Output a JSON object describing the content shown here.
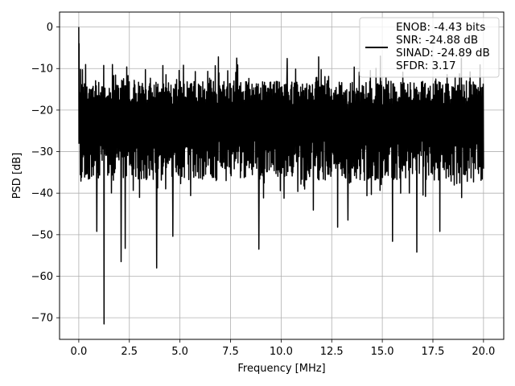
{
  "chart_data": {
    "type": "line",
    "xlabel": "Frequency [MHz]",
    "ylabel": "PSD [dB]",
    "xlim": [
      -0.95,
      21.0
    ],
    "ylim": [
      -75.2,
      3.6
    ],
    "xticks": [
      0.0,
      2.5,
      5.0,
      7.5,
      10.0,
      12.5,
      15.0,
      17.5,
      20.0
    ],
    "xtick_labels": [
      "0.0",
      "2.5",
      "5.0",
      "7.5",
      "10.0",
      "12.5",
      "15.0",
      "17.5",
      "20.0"
    ],
    "yticks": [
      0,
      -10,
      -20,
      -30,
      -40,
      -50,
      -60,
      -70
    ],
    "ytick_labels": [
      "0",
      "−10",
      "−20",
      "−30",
      "−40",
      "−50",
      "−60",
      "−70"
    ],
    "grid": true,
    "legend_position": "top-right",
    "series": [
      {
        "name": "ENOB: -4.43 bits",
        "name_lines": [
          "ENOB: -4.43 bits",
          "SNR: -24.88 dB",
          "SINAD: -24.89 dB",
          "SFDR: 3.17"
        ],
        "color": "#000000",
        "description": "noise-like power spectral density, mostly between -40 and -10 dB across 0-20 MHz",
        "x_range": [
          0.0,
          20.0
        ],
        "peak": {
          "x": 0.0,
          "y": 0.0
        },
        "typical_upper": -12,
        "typical_lower": -35,
        "notable_minima": [
          {
            "x": 1.25,
            "y": -71.5
          },
          {
            "x": 3.85,
            "y": -58.0
          },
          {
            "x": 2.1,
            "y": -56.5
          },
          {
            "x": 8.9,
            "y": -53.5
          },
          {
            "x": 2.3,
            "y": -53.3
          },
          {
            "x": 16.7,
            "y": -54.2
          },
          {
            "x": 15.5,
            "y": -51.6
          },
          {
            "x": 4.65,
            "y": -50.4
          },
          {
            "x": 17.85,
            "y": -49.2
          },
          {
            "x": 0.9,
            "y": -49.2
          },
          {
            "x": 12.8,
            "y": -48.2
          },
          {
            "x": 13.3,
            "y": -46.5
          }
        ],
        "notable_maxima": [
          {
            "x": 6.9,
            "y": -7.2
          },
          {
            "x": 7.8,
            "y": -7.5
          },
          {
            "x": 11.85,
            "y": -7.2
          },
          {
            "x": 14.9,
            "y": -7.0
          },
          {
            "x": 18.9,
            "y": -7.6
          },
          {
            "x": 10.3,
            "y": -7.6
          }
        ]
      }
    ]
  },
  "colors": {
    "line": "#000000",
    "grid": "#b0b0b0",
    "axes": "#000000",
    "background": "#ffffff"
  }
}
